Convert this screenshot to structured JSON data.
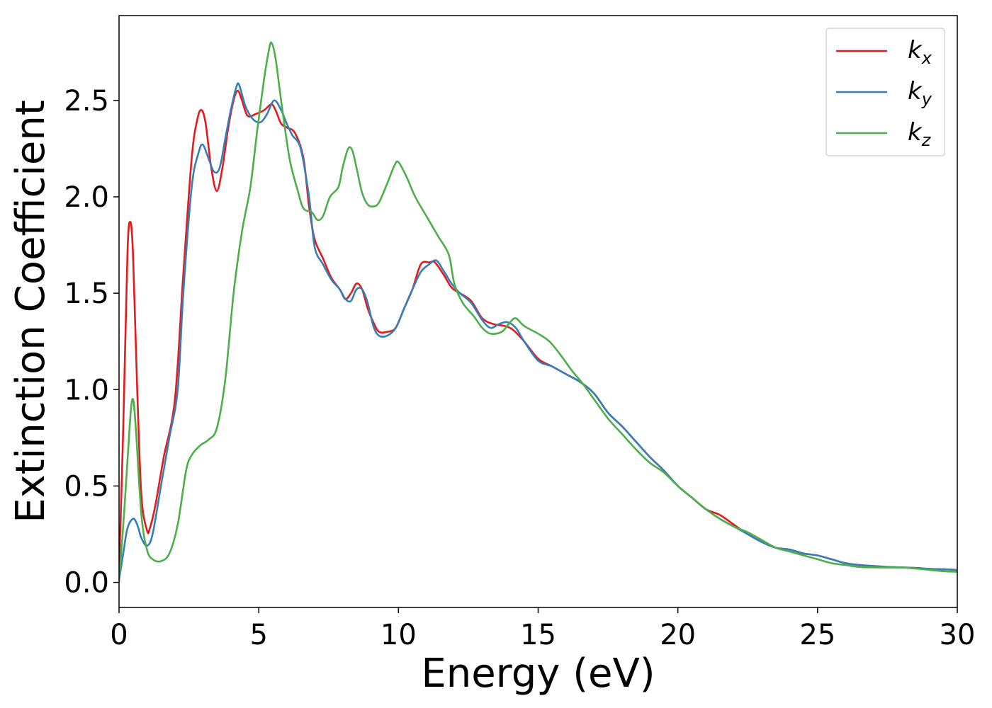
{
  "chart_data": {
    "type": "line",
    "title": "",
    "xlabel": "Energy (eV)",
    "ylabel": "Extinction Coefficient",
    "xlim": [
      0,
      30
    ],
    "ylim": [
      -0.13,
      2.94
    ],
    "xticks": [
      0,
      5,
      10,
      15,
      20,
      25,
      30
    ],
    "xtick_labels": [
      "0",
      "5",
      "10",
      "15",
      "20",
      "25",
      "30"
    ],
    "yticks": [
      0.0,
      0.5,
      1.0,
      1.5,
      2.0,
      2.5
    ],
    "ytick_labels": [
      "0.0",
      "0.5",
      "1.0",
      "1.5",
      "2.0",
      "2.5"
    ],
    "grid": false,
    "legend": "top-right",
    "series": [
      {
        "name": "k",
        "sub": "x",
        "color": "#e41a1c",
        "points": [
          [
            0,
            0.05
          ],
          [
            0.15,
            0.8
          ],
          [
            0.3,
            1.7
          ],
          [
            0.4,
            1.87
          ],
          [
            0.5,
            1.7
          ],
          [
            0.65,
            1.0
          ],
          [
            0.8,
            0.45
          ],
          [
            1.0,
            0.27
          ],
          [
            1.1,
            0.28
          ],
          [
            1.3,
            0.4
          ],
          [
            1.6,
            0.65
          ],
          [
            2.0,
            0.95
          ],
          [
            2.3,
            1.6
          ],
          [
            2.6,
            2.2
          ],
          [
            2.8,
            2.4
          ],
          [
            2.95,
            2.45
          ],
          [
            3.1,
            2.38
          ],
          [
            3.3,
            2.15
          ],
          [
            3.5,
            2.03
          ],
          [
            3.7,
            2.15
          ],
          [
            3.9,
            2.35
          ],
          [
            4.1,
            2.5
          ],
          [
            4.25,
            2.55
          ],
          [
            4.4,
            2.5
          ],
          [
            4.6,
            2.42
          ],
          [
            4.9,
            2.43
          ],
          [
            5.2,
            2.45
          ],
          [
            5.45,
            2.48
          ],
          [
            5.6,
            2.45
          ],
          [
            5.8,
            2.38
          ],
          [
            6.0,
            2.36
          ],
          [
            6.3,
            2.33
          ],
          [
            6.6,
            2.2
          ],
          [
            6.8,
            1.95
          ],
          [
            7.0,
            1.78
          ],
          [
            7.3,
            1.68
          ],
          [
            7.6,
            1.58
          ],
          [
            7.9,
            1.52
          ],
          [
            8.1,
            1.47
          ],
          [
            8.3,
            1.5
          ],
          [
            8.5,
            1.55
          ],
          [
            8.7,
            1.52
          ],
          [
            8.9,
            1.42
          ],
          [
            9.1,
            1.35
          ],
          [
            9.3,
            1.3
          ],
          [
            9.6,
            1.3
          ],
          [
            9.9,
            1.32
          ],
          [
            10.2,
            1.42
          ],
          [
            10.5,
            1.52
          ],
          [
            10.8,
            1.65
          ],
          [
            11.1,
            1.66
          ],
          [
            11.3,
            1.66
          ],
          [
            11.6,
            1.6
          ],
          [
            11.9,
            1.53
          ],
          [
            12.2,
            1.5
          ],
          [
            12.6,
            1.46
          ],
          [
            13.0,
            1.37
          ],
          [
            13.4,
            1.34
          ],
          [
            13.8,
            1.33
          ],
          [
            14.1,
            1.31
          ],
          [
            14.5,
            1.25
          ],
          [
            15.0,
            1.16
          ],
          [
            15.5,
            1.12
          ],
          [
            16.0,
            1.08
          ],
          [
            16.5,
            1.04
          ],
          [
            17.0,
            0.98
          ],
          [
            17.5,
            0.88
          ],
          [
            18.0,
            0.81
          ],
          [
            18.5,
            0.73
          ],
          [
            19.0,
            0.65
          ],
          [
            19.5,
            0.58
          ],
          [
            20.0,
            0.5
          ],
          [
            20.5,
            0.44
          ],
          [
            21.0,
            0.38
          ],
          [
            21.5,
            0.35
          ],
          [
            22.0,
            0.3
          ],
          [
            22.5,
            0.25
          ],
          [
            23.0,
            0.21
          ],
          [
            23.5,
            0.18
          ],
          [
            24.0,
            0.17
          ],
          [
            24.5,
            0.15
          ],
          [
            25.0,
            0.14
          ],
          [
            25.5,
            0.12
          ],
          [
            26.0,
            0.1
          ],
          [
            26.5,
            0.09
          ],
          [
            27.0,
            0.085
          ],
          [
            27.5,
            0.08
          ],
          [
            28.0,
            0.078
          ],
          [
            28.5,
            0.075
          ],
          [
            29.0,
            0.07
          ],
          [
            29.5,
            0.068
          ],
          [
            30.0,
            0.065
          ]
        ]
      },
      {
        "name": "k",
        "sub": "y",
        "color": "#377eb8",
        "points": [
          [
            0,
            0.01
          ],
          [
            0.15,
            0.15
          ],
          [
            0.3,
            0.28
          ],
          [
            0.5,
            0.33
          ],
          [
            0.65,
            0.3
          ],
          [
            0.8,
            0.23
          ],
          [
            1.0,
            0.19
          ],
          [
            1.2,
            0.25
          ],
          [
            1.5,
            0.5
          ],
          [
            1.8,
            0.75
          ],
          [
            2.1,
            1.0
          ],
          [
            2.3,
            1.5
          ],
          [
            2.6,
            2.05
          ],
          [
            2.85,
            2.23
          ],
          [
            3.0,
            2.27
          ],
          [
            3.2,
            2.2
          ],
          [
            3.4,
            2.13
          ],
          [
            3.6,
            2.15
          ],
          [
            3.8,
            2.3
          ],
          [
            4.0,
            2.45
          ],
          [
            4.2,
            2.57
          ],
          [
            4.3,
            2.58
          ],
          [
            4.5,
            2.48
          ],
          [
            4.7,
            2.42
          ],
          [
            4.9,
            2.39
          ],
          [
            5.1,
            2.39
          ],
          [
            5.3,
            2.43
          ],
          [
            5.55,
            2.5
          ],
          [
            5.8,
            2.45
          ],
          [
            6.0,
            2.38
          ],
          [
            6.2,
            2.32
          ],
          [
            6.5,
            2.25
          ],
          [
            6.8,
            2.0
          ],
          [
            7.0,
            1.74
          ],
          [
            7.3,
            1.65
          ],
          [
            7.6,
            1.57
          ],
          [
            7.9,
            1.52
          ],
          [
            8.1,
            1.47
          ],
          [
            8.3,
            1.46
          ],
          [
            8.5,
            1.52
          ],
          [
            8.7,
            1.52
          ],
          [
            8.9,
            1.45
          ],
          [
            9.1,
            1.33
          ],
          [
            9.3,
            1.28
          ],
          [
            9.6,
            1.28
          ],
          [
            9.9,
            1.32
          ],
          [
            10.2,
            1.42
          ],
          [
            10.5,
            1.52
          ],
          [
            10.8,
            1.61
          ],
          [
            11.1,
            1.65
          ],
          [
            11.35,
            1.67
          ],
          [
            11.6,
            1.62
          ],
          [
            11.9,
            1.55
          ],
          [
            12.2,
            1.5
          ],
          [
            12.6,
            1.45
          ],
          [
            13.0,
            1.36
          ],
          [
            13.3,
            1.32
          ],
          [
            13.6,
            1.34
          ],
          [
            13.9,
            1.35
          ],
          [
            14.2,
            1.32
          ],
          [
            14.5,
            1.25
          ],
          [
            15.0,
            1.15
          ],
          [
            15.5,
            1.12
          ],
          [
            16.0,
            1.08
          ],
          [
            16.5,
            1.04
          ],
          [
            17.0,
            0.98
          ],
          [
            17.5,
            0.88
          ],
          [
            18.0,
            0.81
          ],
          [
            18.5,
            0.73
          ],
          [
            19.0,
            0.65
          ],
          [
            19.5,
            0.58
          ],
          [
            20.0,
            0.5
          ],
          [
            20.5,
            0.44
          ],
          [
            21.0,
            0.38
          ],
          [
            21.5,
            0.33
          ],
          [
            22.0,
            0.29
          ],
          [
            22.5,
            0.25
          ],
          [
            23.0,
            0.21
          ],
          [
            23.5,
            0.18
          ],
          [
            24.0,
            0.17
          ],
          [
            24.5,
            0.15
          ],
          [
            25.0,
            0.14
          ],
          [
            25.5,
            0.12
          ],
          [
            26.0,
            0.1
          ],
          [
            26.5,
            0.09
          ],
          [
            27.0,
            0.085
          ],
          [
            27.5,
            0.08
          ],
          [
            28.0,
            0.078
          ],
          [
            28.5,
            0.075
          ],
          [
            29.0,
            0.07
          ],
          [
            29.5,
            0.068
          ],
          [
            30.0,
            0.065
          ]
        ]
      },
      {
        "name": "k",
        "sub": "z",
        "color": "#4daf4a",
        "points": [
          [
            0,
            0.0
          ],
          [
            0.2,
            0.4
          ],
          [
            0.4,
            0.85
          ],
          [
            0.5,
            0.95
          ],
          [
            0.6,
            0.8
          ],
          [
            0.8,
            0.35
          ],
          [
            1.0,
            0.17
          ],
          [
            1.2,
            0.12
          ],
          [
            1.5,
            0.11
          ],
          [
            1.8,
            0.15
          ],
          [
            2.1,
            0.3
          ],
          [
            2.4,
            0.58
          ],
          [
            2.6,
            0.66
          ],
          [
            2.9,
            0.71
          ],
          [
            3.2,
            0.74
          ],
          [
            3.5,
            0.8
          ],
          [
            3.8,
            1.05
          ],
          [
            4.1,
            1.5
          ],
          [
            4.4,
            1.82
          ],
          [
            4.7,
            2.05
          ],
          [
            4.95,
            2.35
          ],
          [
            5.2,
            2.62
          ],
          [
            5.35,
            2.75
          ],
          [
            5.45,
            2.8
          ],
          [
            5.6,
            2.72
          ],
          [
            5.8,
            2.5
          ],
          [
            6.1,
            2.2
          ],
          [
            6.4,
            2.03
          ],
          [
            6.6,
            1.94
          ],
          [
            6.9,
            1.92
          ],
          [
            7.1,
            1.88
          ],
          [
            7.3,
            1.9
          ],
          [
            7.55,
            2.0
          ],
          [
            7.85,
            2.05
          ],
          [
            8.0,
            2.15
          ],
          [
            8.2,
            2.25
          ],
          [
            8.35,
            2.24
          ],
          [
            8.5,
            2.15
          ],
          [
            8.7,
            2.02
          ],
          [
            8.9,
            1.96
          ],
          [
            9.1,
            1.95
          ],
          [
            9.3,
            1.97
          ],
          [
            9.6,
            2.07
          ],
          [
            9.85,
            2.16
          ],
          [
            10.0,
            2.18
          ],
          [
            10.3,
            2.1
          ],
          [
            10.6,
            2.0
          ],
          [
            11.0,
            1.9
          ],
          [
            11.4,
            1.8
          ],
          [
            11.8,
            1.7
          ],
          [
            12.0,
            1.55
          ],
          [
            12.3,
            1.45
          ],
          [
            12.7,
            1.38
          ],
          [
            13.0,
            1.32
          ],
          [
            13.3,
            1.29
          ],
          [
            13.7,
            1.3
          ],
          [
            14.0,
            1.35
          ],
          [
            14.2,
            1.37
          ],
          [
            14.5,
            1.33
          ],
          [
            15.0,
            1.29
          ],
          [
            15.4,
            1.25
          ],
          [
            15.8,
            1.18
          ],
          [
            16.2,
            1.1
          ],
          [
            16.6,
            1.03
          ],
          [
            17.0,
            0.95
          ],
          [
            17.5,
            0.85
          ],
          [
            18.0,
            0.77
          ],
          [
            18.5,
            0.69
          ],
          [
            19.0,
            0.62
          ],
          [
            19.5,
            0.57
          ],
          [
            20.0,
            0.5
          ],
          [
            20.5,
            0.44
          ],
          [
            21.0,
            0.38
          ],
          [
            21.5,
            0.33
          ],
          [
            22.0,
            0.29
          ],
          [
            22.5,
            0.26
          ],
          [
            23.0,
            0.22
          ],
          [
            23.5,
            0.18
          ],
          [
            24.0,
            0.16
          ],
          [
            24.5,
            0.14
          ],
          [
            25.0,
            0.12
          ],
          [
            25.5,
            0.1
          ],
          [
            26.0,
            0.09
          ],
          [
            26.5,
            0.08
          ],
          [
            27.0,
            0.078
          ],
          [
            27.5,
            0.077
          ],
          [
            28.0,
            0.077
          ],
          [
            28.5,
            0.072
          ],
          [
            29.0,
            0.065
          ],
          [
            29.5,
            0.058
          ],
          [
            30.0,
            0.055
          ]
        ]
      }
    ]
  }
}
